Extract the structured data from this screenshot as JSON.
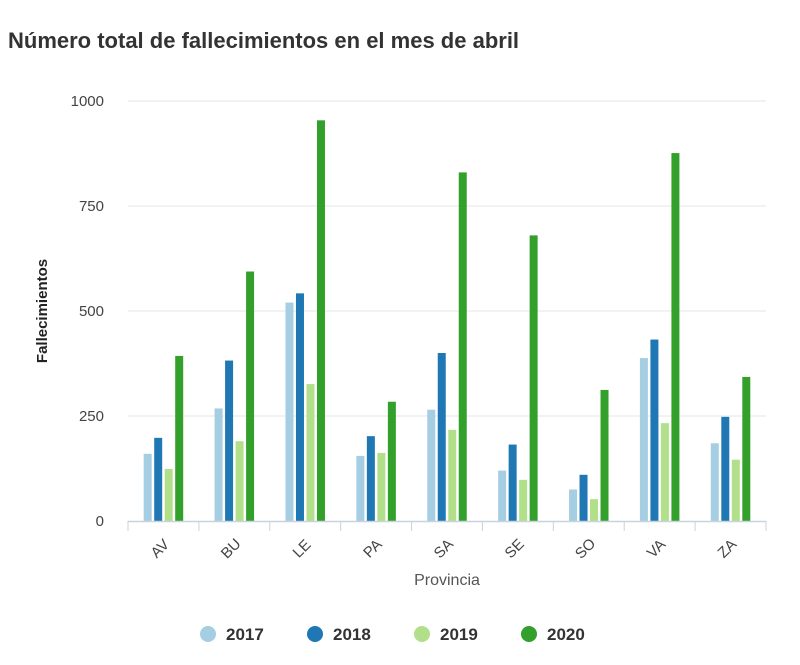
{
  "title": "Número total de fallecimientos en el mes de abril",
  "chart_data": {
    "type": "bar",
    "title": "Número total de fallecimientos en el mes de abril",
    "xlabel": "Provincia",
    "ylabel": "Fallecimientos",
    "ylim": [
      0,
      1000
    ],
    "yticks": [
      "0",
      "250",
      "500",
      "750",
      "1000"
    ],
    "grid": true,
    "legend_position": "bottom",
    "categories": [
      "AV",
      "BU",
      "LE",
      "PA",
      "SA",
      "SE",
      "SO",
      "VA",
      "ZA"
    ],
    "series": [
      {
        "name": "2017",
        "color": "#a6cee3",
        "values": [
          160,
          268,
          520,
          155,
          265,
          120,
          75,
          388,
          185
        ]
      },
      {
        "name": "2018",
        "color": "#1f78b4",
        "values": [
          198,
          382,
          542,
          202,
          400,
          182,
          110,
          432,
          248
        ]
      },
      {
        "name": "2019",
        "color": "#b2df8a",
        "values": [
          124,
          190,
          326,
          162,
          217,
          98,
          52,
          233,
          146
        ]
      },
      {
        "name": "2020",
        "color": "#33a02c",
        "values": [
          393,
          594,
          954,
          284,
          830,
          680,
          312,
          876,
          343
        ]
      }
    ]
  }
}
